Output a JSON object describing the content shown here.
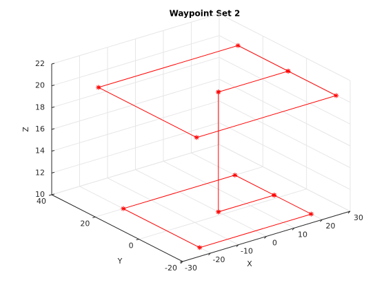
{
  "chart_data": {
    "type": "line3d",
    "title": "Waypoint Set 2",
    "xlabel": "X",
    "ylabel": "Y",
    "zlabel": "Z",
    "x": [
      0,
      20,
      20,
      -20,
      -20,
      20,
      20,
      0,
      0,
      25,
      25,
      -25,
      -25,
      25,
      25,
      0
    ],
    "y": [
      2,
      2,
      20,
      20,
      -15,
      -15,
      2,
      2,
      2,
      2,
      25,
      25,
      -20,
      -20,
      2,
      2
    ],
    "z": [
      10,
      10,
      10,
      10,
      10,
      10,
      10,
      10,
      21,
      21,
      21,
      21,
      21,
      21,
      21,
      21
    ],
    "color": "#ff0000",
    "xlim": [
      -30,
      30
    ],
    "ylim": [
      -20,
      40
    ],
    "zlim": [
      10,
      22
    ],
    "xticks": [
      -30,
      -20,
      -10,
      0,
      10,
      20,
      30
    ],
    "yticks": [
      -20,
      0,
      20,
      40
    ],
    "zticks": [
      10,
      12,
      14,
      16,
      18,
      20,
      22
    ],
    "grid": true
  }
}
